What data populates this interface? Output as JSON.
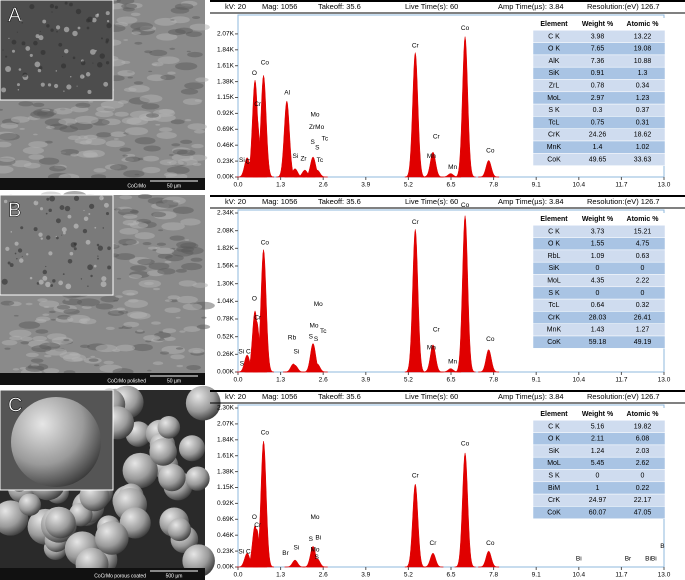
{
  "images": [
    {
      "label": "A",
      "scale_bar": "50 µm",
      "caption": "CoCrMo"
    },
    {
      "label": "B",
      "scale_bar": "50 µm",
      "caption": "CoCrMo polished"
    },
    {
      "label": "C",
      "scale_bar": "500 µm",
      "caption": "CoCrMo porous coated"
    }
  ],
  "chart_data": [
    {
      "type": "spectrum",
      "header": [
        "kV: 20",
        "Mag: 1056",
        "Takeoff: 35.6",
        "Live Time(s): 60",
        "Amp Time(µs): 3.84",
        "Resolution:(eV) 126.7"
      ],
      "xlim": [
        0,
        13
      ],
      "xticks": [
        {
          "value": 0,
          "label": "0.0"
        },
        1.3,
        2.6,
        3.9,
        5.2,
        6.5,
        7.8,
        9.1,
        10.4,
        11.7,
        {
          "value": 13,
          "label": "13.0"
        }
      ],
      "ylim": [
        0,
        2.3
      ],
      "yticks": [
        {
          "value": 0,
          "label": "0.00K"
        },
        {
          "value": 0.23,
          "label": "0.23K"
        },
        {
          "value": 0.46,
          "label": "0.46K"
        },
        {
          "value": 0.69,
          "label": "0.69K"
        },
        {
          "value": 0.92,
          "label": "0.92K"
        },
        {
          "value": 1.15,
          "label": "1.15K"
        },
        {
          "value": 1.38,
          "label": "1.38K"
        },
        {
          "value": 1.61,
          "label": "1.61K"
        },
        {
          "value": 1.84,
          "label": "1.84K"
        },
        {
          "value": 2.07,
          "label": "2.07K"
        }
      ],
      "color": "#e00000",
      "peaks": {
        "x": [
          0.28,
          0.52,
          0.57,
          0.78,
          1.49,
          1.74,
          2.04,
          2.29,
          2.42,
          5.41,
          5.9,
          5.95,
          6.49,
          6.93,
          7.65
        ],
        "values": [
          0.28,
          1.4,
          0.9,
          1.47,
          1.1,
          0.12,
          0.1,
          0.29,
          0.1,
          1.8,
          0.1,
          0.36,
          0.05,
          2.03,
          0.24
        ]
      },
      "annotations": [
        {
          "text": "C",
          "x": 0.3,
          "y": 0.22
        },
        {
          "text": "Si",
          "x": 0.12,
          "y": 0.24
        },
        {
          "text": "O",
          "x": 0.5,
          "y": 1.5
        },
        {
          "text": "Co",
          "x": 0.82,
          "y": 1.65
        },
        {
          "text": "Cr",
          "x": 0.6,
          "y": 1.05
        },
        {
          "text": "Al",
          "x": 1.5,
          "y": 1.22
        },
        {
          "text": "Si",
          "x": 1.75,
          "y": 0.3
        },
        {
          "text": "Zr",
          "x": 2.0,
          "y": 0.26
        },
        {
          "text": "Mo",
          "x": 2.35,
          "y": 0.9
        },
        {
          "text": "ZrMo",
          "x": 2.4,
          "y": 0.72
        },
        {
          "text": "S",
          "x": 2.28,
          "y": 0.5
        },
        {
          "text": "S",
          "x": 2.42,
          "y": 0.42
        },
        {
          "text": "Tc",
          "x": 2.65,
          "y": 0.55
        },
        {
          "text": "Tc",
          "x": 2.5,
          "y": 0.24
        },
        {
          "text": "Cr",
          "x": 5.41,
          "y": 1.9
        },
        {
          "text": "Cr",
          "x": 6.05,
          "y": 0.58
        },
        {
          "text": "Mn",
          "x": 5.9,
          "y": 0.3
        },
        {
          "text": "Mn",
          "x": 6.55,
          "y": 0.14
        },
        {
          "text": "Co",
          "x": 6.93,
          "y": 2.15
        },
        {
          "text": "Co",
          "x": 7.7,
          "y": 0.38
        }
      ],
      "table": {
        "header": [
          "Element",
          "Weight %",
          "Atomic %"
        ],
        "rows": [
          [
            "C K",
            3.98,
            13.22
          ],
          [
            "O K",
            7.65,
            19.08
          ],
          [
            "AlK",
            7.36,
            10.88
          ],
          [
            "SiK",
            0.91,
            1.3
          ],
          [
            "ZrL",
            0.78,
            0.34
          ],
          [
            "MoL",
            2.97,
            1.23
          ],
          [
            "S K",
            0.3,
            0.37
          ],
          [
            "TcL",
            0.75,
            0.31
          ],
          [
            "CrK",
            24.26,
            18.62
          ],
          [
            "MnK",
            1.4,
            1.02
          ],
          [
            "CoK",
            49.65,
            33.63
          ]
        ]
      }
    },
    {
      "type": "spectrum",
      "header": [
        "kV: 20",
        "Mag: 1056",
        "Takeoff: 35.6",
        "Live Time(s): 60",
        "Amp Time(µs): 3.84",
        "Resolution:(eV) 126.7"
      ],
      "xlim": [
        0,
        13
      ],
      "xticks": [
        {
          "value": 0,
          "label": "0.0"
        },
        1.3,
        2.6,
        3.9,
        5.2,
        6.5,
        7.8,
        9.1,
        10.4,
        11.7,
        {
          "value": 13,
          "label": "13.0"
        }
      ],
      "ylim": [
        0,
        2.34
      ],
      "yticks": [
        {
          "value": 0,
          "label": "0.00K"
        },
        {
          "value": 0.26,
          "label": "0.26K"
        },
        {
          "value": 0.52,
          "label": "0.52K"
        },
        {
          "value": 0.78,
          "label": "0.78K"
        },
        {
          "value": 1.04,
          "label": "1.04K"
        },
        {
          "value": 1.3,
          "label": "1.30K"
        },
        {
          "value": 1.56,
          "label": "1.56K"
        },
        {
          "value": 1.82,
          "label": "1.82K"
        },
        {
          "value": 2.08,
          "label": "2.08K"
        },
        {
          "value": 2.34,
          "label": "2.34K"
        }
      ],
      "color": "#e00000",
      "peaks": {
        "x": [
          0.28,
          0.52,
          0.57,
          0.78,
          1.69,
          1.74,
          2.29,
          2.42,
          5.41,
          5.9,
          5.95,
          6.49,
          6.93,
          7.65
        ],
        "values": [
          0.25,
          0.9,
          0.75,
          1.8,
          0.12,
          0.1,
          0.42,
          0.12,
          2.1,
          0.1,
          0.4,
          0.05,
          2.3,
          0.33
        ]
      },
      "annotations": [
        {
          "text": "Si C",
          "x": 0.2,
          "y": 0.3
        },
        {
          "text": "S",
          "x": 0.12,
          "y": 0.12
        },
        {
          "text": "O",
          "x": 0.5,
          "y": 1.08
        },
        {
          "text": "Cr",
          "x": 0.6,
          "y": 0.8
        },
        {
          "text": "Co",
          "x": 0.82,
          "y": 1.9
        },
        {
          "text": "Rb",
          "x": 1.65,
          "y": 0.5
        },
        {
          "text": "Si",
          "x": 1.78,
          "y": 0.3
        },
        {
          "text": "Mo",
          "x": 2.45,
          "y": 1.0
        },
        {
          "text": "Mo",
          "x": 2.32,
          "y": 0.68
        },
        {
          "text": "S",
          "x": 2.22,
          "y": 0.52
        },
        {
          "text": "S",
          "x": 2.38,
          "y": 0.48
        },
        {
          "text": "Tc",
          "x": 2.6,
          "y": 0.6
        },
        {
          "text": "Cr",
          "x": 5.41,
          "y": 2.2
        },
        {
          "text": "Cr",
          "x": 6.05,
          "y": 0.62
        },
        {
          "text": "Mn",
          "x": 5.9,
          "y": 0.36
        },
        {
          "text": "Mn",
          "x": 6.55,
          "y": 0.15
        },
        {
          "text": "Co",
          "x": 6.93,
          "y": 2.45
        },
        {
          "text": "Co",
          "x": 7.7,
          "y": 0.48
        }
      ],
      "table": {
        "header": [
          "Element",
          "Weight %",
          "Atomic %"
        ],
        "rows": [
          [
            "C K",
            3.73,
            15.21
          ],
          [
            "O K",
            1.55,
            4.75
          ],
          [
            "RbL",
            1.09,
            0.63
          ],
          [
            "SiK",
            0,
            0
          ],
          [
            "MoL",
            4.35,
            2.22
          ],
          [
            "S K",
            0,
            0
          ],
          [
            "TcL",
            0.64,
            0.32
          ],
          [
            "CrK",
            28.03,
            26.41
          ],
          [
            "MnK",
            1.43,
            1.27
          ],
          [
            "CoK",
            59.18,
            49.19
          ]
        ]
      }
    },
    {
      "type": "spectrum",
      "header": [
        "kV: 20",
        "Mag: 1056",
        "Takeoff: 35.6",
        "Live Time(s): 60",
        "Amp Time(µs): 3.84",
        "Resolution:(eV) 126.7"
      ],
      "xlim": [
        0,
        13
      ],
      "xticks": [
        {
          "value": 0,
          "label": "0.0"
        },
        1.3,
        2.6,
        3.9,
        5.2,
        6.5,
        7.8,
        9.1,
        10.4,
        11.7,
        {
          "value": 13,
          "label": "13.0"
        }
      ],
      "ylim": [
        0,
        2.3
      ],
      "yticks": [
        {
          "value": 0,
          "label": "0.00K"
        },
        {
          "value": 0.23,
          "label": "0.23K"
        },
        {
          "value": 0.46,
          "label": "0.46K"
        },
        {
          "value": 0.69,
          "label": "0.69K"
        },
        {
          "value": 0.92,
          "label": "0.92K"
        },
        {
          "value": 1.15,
          "label": "1.15K"
        },
        {
          "value": 1.38,
          "label": "1.38K"
        },
        {
          "value": 1.61,
          "label": "1.61K"
        },
        {
          "value": 1.84,
          "label": "1.84K"
        },
        {
          "value": 2.07,
          "label": "2.07K"
        },
        {
          "value": 2.3,
          "label": "2.30K"
        }
      ],
      "color": "#e00000",
      "peaks": {
        "x": [
          0.28,
          0.52,
          0.57,
          0.78,
          1.74,
          2.29,
          2.42,
          5.41,
          5.95,
          6.93,
          7.65
        ],
        "values": [
          0.2,
          0.6,
          0.55,
          1.82,
          0.1,
          0.3,
          0.12,
          1.2,
          0.2,
          1.65,
          0.23
        ]
      },
      "annotations": [
        {
          "text": "Si C",
          "x": 0.2,
          "y": 0.22
        },
        {
          "text": "O",
          "x": 0.5,
          "y": 0.72
        },
        {
          "text": "Cr",
          "x": 0.6,
          "y": 0.6
        },
        {
          "text": "Co",
          "x": 0.82,
          "y": 1.94
        },
        {
          "text": "Br",
          "x": 1.45,
          "y": 0.2
        },
        {
          "text": "Si",
          "x": 1.78,
          "y": 0.28
        },
        {
          "text": "Mo",
          "x": 2.35,
          "y": 0.72
        },
        {
          "text": "Bi",
          "x": 2.45,
          "y": 0.42
        },
        {
          "text": "S",
          "x": 2.22,
          "y": 0.4
        },
        {
          "text": "Mo",
          "x": 2.35,
          "y": 0.25
        },
        {
          "text": "S",
          "x": 2.4,
          "y": 0.14
        },
        {
          "text": "Cr",
          "x": 5.41,
          "y": 1.32
        },
        {
          "text": "Cr",
          "x": 5.95,
          "y": 0.34
        },
        {
          "text": "Co",
          "x": 6.93,
          "y": 1.78
        },
        {
          "text": "Co",
          "x": 7.7,
          "y": 0.34
        },
        {
          "text": "Bi",
          "x": 10.4,
          "y": 0.12
        },
        {
          "text": "Br",
          "x": 11.9,
          "y": 0.12
        },
        {
          "text": "BiBi",
          "x": 12.6,
          "y": 0.12
        },
        {
          "text": "B",
          "x": 12.95,
          "y": 0.3
        }
      ],
      "table": {
        "header": [
          "Element",
          "Weight %",
          "Atomic %"
        ],
        "rows": [
          [
            "C K",
            5.16,
            19.82
          ],
          [
            "O K",
            2.11,
            6.08
          ],
          [
            "SiK",
            1.24,
            2.03
          ],
          [
            "MoL",
            5.45,
            2.62
          ],
          [
            "S K",
            0,
            0
          ],
          [
            "BiM",
            1,
            0.22
          ],
          [
            "CrK",
            24.97,
            22.17
          ],
          [
            "CoK",
            60.07,
            47.05
          ]
        ]
      }
    }
  ]
}
